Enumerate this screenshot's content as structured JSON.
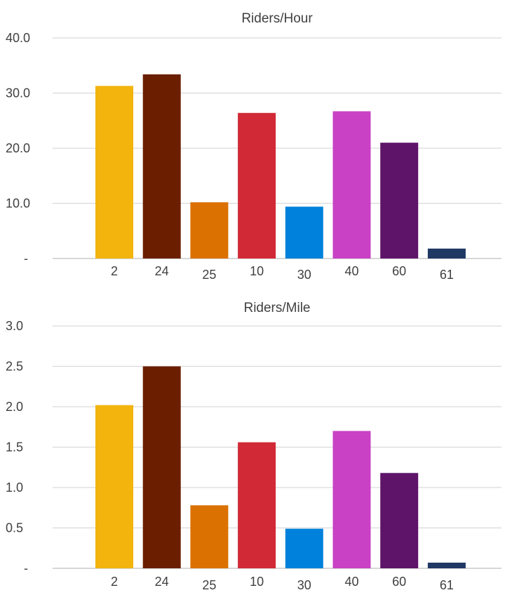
{
  "chart_data": [
    {
      "type": "bar",
      "title": "Riders/Hour",
      "categories": [
        "2",
        "24",
        "25",
        "10",
        "30",
        "40",
        "60",
        "61"
      ],
      "values": [
        31.3,
        33.4,
        10.2,
        26.4,
        9.4,
        26.7,
        21.0,
        1.8
      ],
      "colors": [
        "#F2B40D",
        "#6B1F00",
        "#DB7100",
        "#D12A36",
        "#0081DB",
        "#C941C4",
        "#5E1469",
        "#1F3864"
      ],
      "ylim": [
        0,
        40
      ],
      "yticks": [
        "-",
        "10.0",
        "20.0",
        "30.0",
        "40.0"
      ],
      "grid": true,
      "legend": "none"
    },
    {
      "type": "bar",
      "title": "Riders/Mile",
      "categories": [
        "2",
        "24",
        "25",
        "10",
        "30",
        "40",
        "60",
        "61"
      ],
      "values": [
        2.02,
        2.5,
        0.78,
        1.56,
        0.49,
        1.7,
        1.18,
        0.07
      ],
      "colors": [
        "#F2B40D",
        "#6B1F00",
        "#DB7100",
        "#D12A36",
        "#0081DB",
        "#C941C4",
        "#5E1469",
        "#1F3864"
      ],
      "ylim": [
        0,
        3
      ],
      "yticks": [
        "-",
        "0.5",
        "1.0",
        "1.5",
        "2.0",
        "2.5",
        "3.0"
      ],
      "grid": true,
      "legend": "none"
    }
  ]
}
